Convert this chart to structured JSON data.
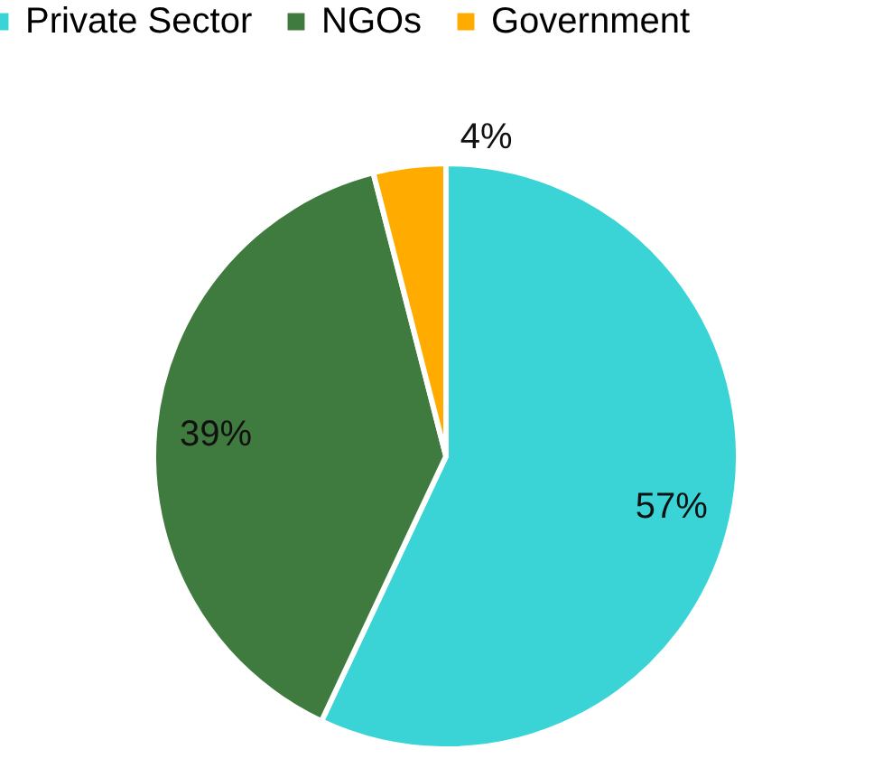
{
  "chart_data": {
    "type": "pie",
    "categories": [
      "Private Sector",
      "NGOs",
      "Government"
    ],
    "values": [
      57,
      39,
      4
    ],
    "colors": [
      "#3ad4d6",
      "#3f7a3f",
      "#ffab00"
    ],
    "value_labels": [
      "57%",
      "39%",
      "4%"
    ],
    "legend": "top"
  }
}
